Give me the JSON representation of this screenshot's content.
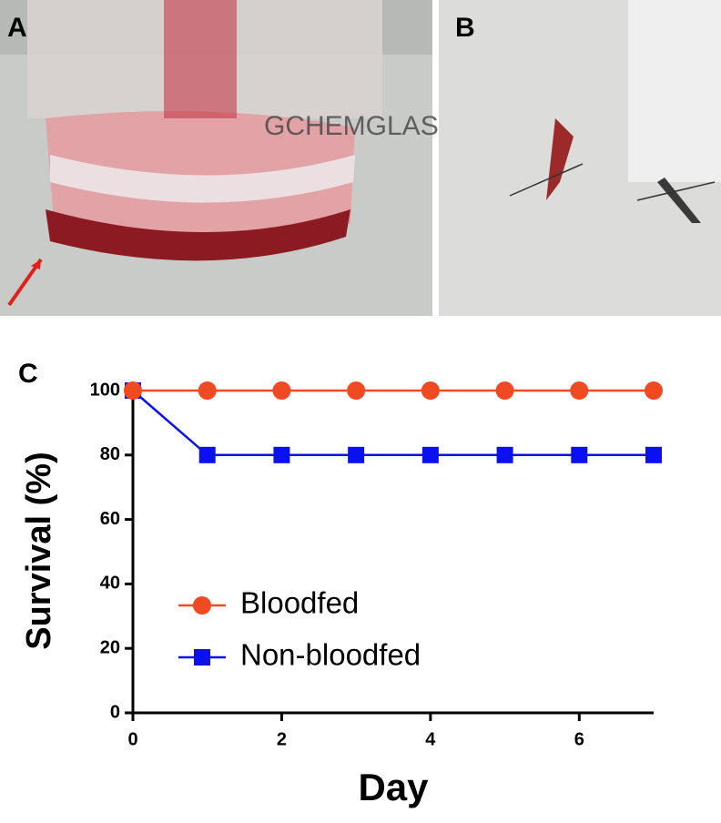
{
  "panels": {
    "a": "A",
    "b": "B",
    "c": "C"
  },
  "chart_data": {
    "type": "line",
    "x_label": "Day",
    "y_label": "Survival (%)",
    "x": [
      0,
      1,
      2,
      3,
      4,
      5,
      6,
      7
    ],
    "series": [
      {
        "name": "Bloodfed",
        "color": "#f04a23",
        "marker": "circle",
        "values": [
          100,
          100,
          100,
          100,
          100,
          100,
          100,
          100
        ]
      },
      {
        "name": "Non-bloodfed",
        "color": "#0a10f0",
        "marker": "square",
        "values": [
          100,
          80,
          80,
          80,
          80,
          80,
          80,
          80
        ]
      }
    ],
    "xlim": [
      0,
      7
    ],
    "xticks": [
      0,
      2,
      4,
      6
    ],
    "ylim": [
      0,
      100
    ],
    "yticks": [
      0,
      20,
      40,
      60,
      80,
      100
    ],
    "grid": false,
    "legend": "lower left"
  }
}
